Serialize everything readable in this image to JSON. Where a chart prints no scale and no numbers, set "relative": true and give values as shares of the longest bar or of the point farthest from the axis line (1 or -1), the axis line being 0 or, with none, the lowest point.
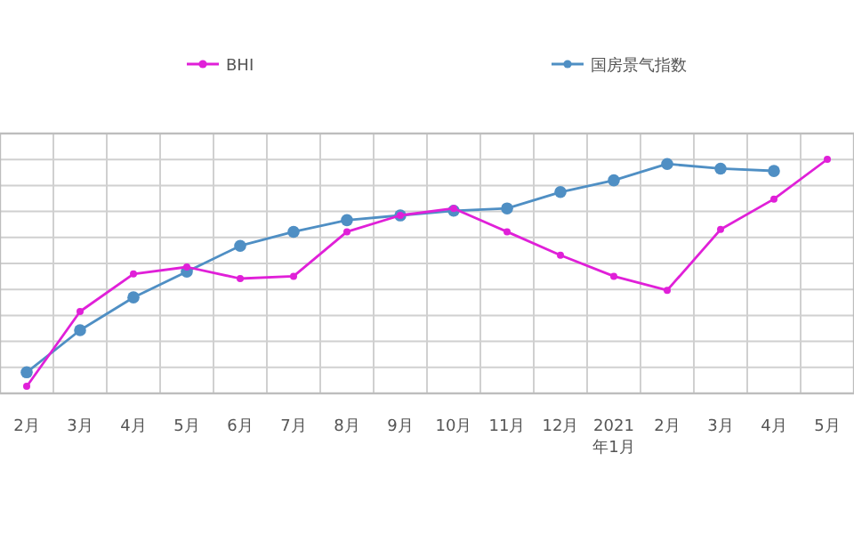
{
  "chart_data": {
    "type": "line",
    "relative": true,
    "categories": [
      "2月",
      "3月",
      "4月",
      "5月",
      "6月",
      "7月",
      "8月",
      "9月",
      "10月",
      "11月",
      "12月",
      "2021年1月",
      "2月",
      "3月",
      "4月",
      "5月"
    ],
    "series": [
      {
        "name": "BHI",
        "color": "#e020d8",
        "values": [
          0.03,
          0.35,
          0.51,
          0.54,
          0.49,
          0.5,
          0.69,
          0.76,
          0.79,
          0.69,
          0.59,
          0.5,
          0.44,
          0.7,
          0.83,
          1
        ]
      },
      {
        "name": "国房景气指数",
        "color": "#4f8fc4",
        "values": [
          0.09,
          0.27,
          0.41,
          0.52,
          0.63,
          0.69,
          0.74,
          0.76,
          0.78,
          0.79,
          0.86,
          0.91,
          0.98,
          0.96,
          0.95,
          null
        ]
      }
    ],
    "grid": true,
    "legend": "top",
    "marker": "circle",
    "line_style": "solid"
  }
}
